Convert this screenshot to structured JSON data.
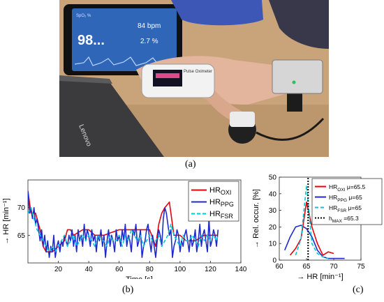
{
  "photo": {
    "phone_spo2_label": "SpO₂ %",
    "phone_spo2_value": "98...",
    "phone_hr_value": "84 bpm",
    "phone_pi_value": "2.7 %",
    "oximeter_brand": "Pulse Oximeter",
    "laptop_brand": "Lenovo",
    "colors": {
      "skin": "#e3b59c",
      "wood": "#c9a47a",
      "laptop": "#3b3b3d",
      "oximeter": "#f2f2f2",
      "phone_screen": "#2f66b8"
    }
  },
  "captions": {
    "a": "(a)",
    "b": "(b)",
    "c": "(c)"
  },
  "chart_data": [
    {
      "type": "line",
      "xlabel": "→ Time [s]",
      "ylabel": "→ HR [min⁻¹]",
      "xlim": [
        0,
        140
      ],
      "ylim": [
        60,
        75
      ],
      "xticks": [
        20,
        40,
        60,
        80,
        100,
        120,
        140
      ],
      "yticks": [
        65,
        70
      ],
      "grid": false,
      "legend_position": "top-right",
      "series": [
        {
          "name": "HR",
          "sub": "OXI",
          "color": "#e8000b",
          "dash": "",
          "x": [
            0,
            2,
            5,
            8,
            10,
            12,
            14,
            16,
            20,
            24,
            26,
            28,
            30,
            36,
            40,
            44,
            46,
            50,
            60,
            70,
            80,
            84,
            86,
            88,
            90,
            93,
            96,
            100,
            104,
            110,
            116,
            120,
            125
          ],
          "values": [
            73,
            69,
            69,
            66,
            63,
            62,
            62,
            62,
            63,
            64,
            66,
            66,
            65,
            66,
            66,
            65,
            65,
            65,
            66,
            66,
            66,
            63,
            67,
            69,
            70,
            71,
            65,
            65,
            64,
            64,
            65,
            65,
            65
          ]
        },
        {
          "name": "HR",
          "sub": "PPG",
          "color": "#1f2acc",
          "dash": "",
          "x": [
            0,
            1,
            2,
            3,
            4,
            5,
            6,
            7,
            8,
            9,
            10,
            11,
            12,
            13,
            14,
            15,
            16,
            17,
            18,
            19,
            20,
            21,
            22,
            23,
            24,
            25,
            26,
            27,
            28,
            29,
            30,
            31,
            32,
            33,
            34,
            35,
            36,
            37,
            38,
            39,
            40,
            41,
            42,
            43,
            44,
            45,
            46,
            47,
            48,
            49,
            50,
            51,
            52,
            53,
            54,
            55,
            56,
            57,
            58,
            59,
            60,
            61,
            62,
            63,
            64,
            65,
            66,
            67,
            68,
            69,
            70,
            71,
            72,
            73,
            74,
            75,
            76,
            77,
            78,
            79,
            80,
            81,
            82,
            83,
            84,
            85,
            86,
            87,
            88,
            89,
            90,
            91,
            92,
            93,
            94,
            95,
            96,
            97,
            98,
            99,
            100,
            101,
            102,
            103,
            104,
            105,
            106,
            107,
            108,
            109,
            110,
            111,
            112,
            113,
            114,
            115,
            116,
            117,
            118,
            119,
            120,
            121,
            122,
            123,
            124,
            125
          ],
          "values": [
            73,
            69,
            70,
            68,
            70,
            67,
            68,
            66,
            64,
            66,
            63,
            65,
            62,
            64,
            61,
            63,
            62,
            65,
            61,
            63,
            64,
            62,
            64,
            63,
            65,
            64,
            63,
            65,
            64,
            66,
            63,
            65,
            62,
            66,
            64,
            65,
            63,
            67,
            64,
            66,
            65,
            63,
            66,
            64,
            65,
            62,
            65,
            64,
            66,
            63,
            65,
            61,
            64,
            66,
            63,
            65,
            64,
            62,
            66,
            64,
            65,
            63,
            66,
            64,
            67,
            63,
            65,
            64,
            62,
            66,
            65,
            67,
            63,
            64,
            66,
            61,
            63,
            64,
            66,
            67,
            64,
            62,
            65,
            63,
            61,
            64,
            66,
            65,
            63,
            68,
            70,
            69,
            67,
            65,
            66,
            61,
            63,
            64,
            66,
            65,
            62,
            64,
            63,
            65,
            66,
            64,
            62,
            65,
            63,
            64,
            66,
            62,
            64,
            67,
            63,
            65,
            66,
            64,
            62,
            68,
            63,
            64,
            66,
            65,
            63,
            66
          ]
        },
        {
          "name": "HR",
          "sub": "FSR",
          "color": "#00c8d8",
          "dash": "5,3",
          "x": [
            0,
            2,
            4,
            6,
            8,
            10,
            12,
            14,
            16,
            18,
            20,
            22,
            24,
            26,
            28,
            30,
            32,
            34,
            36,
            38,
            40,
            42,
            44,
            46,
            48,
            50,
            52,
            54,
            56,
            58,
            60,
            62,
            64,
            66,
            68,
            70,
            72,
            74,
            76,
            78,
            80,
            82,
            84,
            86,
            88,
            90,
            92,
            94,
            96,
            98,
            100,
            102,
            104,
            106,
            108,
            110,
            112,
            114,
            116,
            118,
            120,
            122,
            124,
            125
          ],
          "values": [
            69,
            70,
            68,
            66,
            65,
            64,
            63,
            62,
            63,
            62,
            63,
            64,
            65,
            63,
            64,
            65,
            63,
            64,
            65,
            64,
            65,
            64,
            63,
            65,
            64,
            64,
            63,
            65,
            64,
            64,
            65,
            63,
            65,
            64,
            66,
            65,
            64,
            65,
            63,
            64,
            65,
            64,
            64,
            65,
            63,
            64,
            65,
            67,
            65,
            64,
            63,
            65,
            64,
            64,
            65,
            64,
            63,
            65,
            64,
            65,
            64,
            65,
            64,
            65
          ]
        }
      ]
    },
    {
      "type": "line",
      "xlabel": "→ HR [min⁻¹]",
      "ylabel": "→ Rel. occur. [%]",
      "xlim": [
        60,
        75
      ],
      "ylim": [
        0,
        50
      ],
      "xticks": [
        60,
        65,
        70,
        75
      ],
      "yticks": [
        0,
        10,
        20,
        30,
        40,
        50
      ],
      "grid": false,
      "legend_position": "top-right",
      "series": [
        {
          "name": "HR",
          "sub": "OXI",
          "mu_label": "μ=65.5",
          "color": "#e8000b",
          "dash": "",
          "x": [
            62,
            63,
            64,
            65,
            66,
            67,
            68,
            69,
            70
          ],
          "values": [
            3,
            7,
            13,
            35,
            20,
            10,
            3,
            5,
            4
          ]
        },
        {
          "name": "HR",
          "sub": "PPG",
          "mu_label": "μ=65",
          "color": "#1f2acc",
          "dash": "",
          "x": [
            61,
            62,
            63,
            64,
            65,
            66,
            67,
            68,
            69,
            70,
            72
          ],
          "values": [
            6,
            14,
            20,
            21,
            19,
            14,
            6,
            2,
            1,
            1,
            1
          ]
        },
        {
          "name": "HR",
          "sub": "FSR",
          "mu_label": "μ=65",
          "color": "#00c8d8",
          "dash": "5,3",
          "x": [
            63,
            64,
            65,
            66,
            67,
            68,
            69
          ],
          "values": [
            3,
            13,
            45,
            10,
            4,
            2,
            1
          ]
        },
        {
          "name": "h",
          "sub": "MAX",
          "mu_label": "=65.3",
          "color": "#000000",
          "dash": "2,2",
          "x": [
            65.3,
            65.3
          ],
          "values": [
            0,
            50
          ]
        }
      ]
    }
  ]
}
